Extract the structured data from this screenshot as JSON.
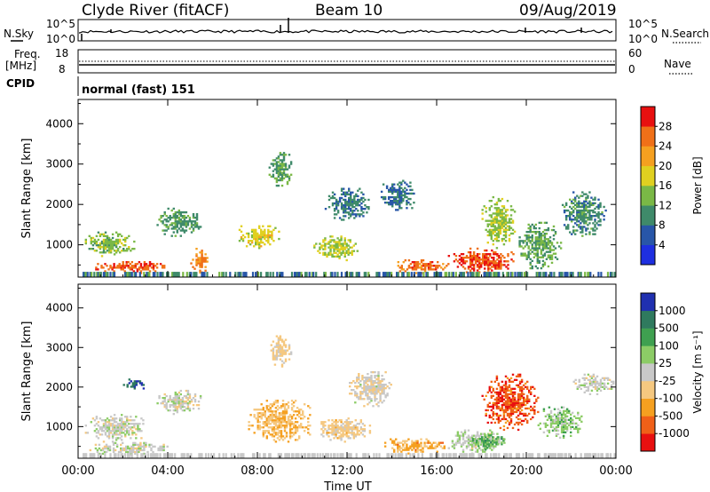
{
  "header": {
    "station": "Clyde River (fitACF)",
    "beam": "Beam 10",
    "date": "09/Aug/2019"
  },
  "strip": {
    "nsky_label": "N.Sky",
    "nsearch_label": "N.Search",
    "freq_label": "Freq.",
    "freq_unit": "[MHz]",
    "nave_label": "Nave",
    "cpid_label": "CPID",
    "cpid_value": "normal (fast) 151",
    "noise_ticks": [
      "10^5",
      "10^0"
    ],
    "freq_ticks": [
      "18",
      "8"
    ],
    "nave_ticks": [
      "60",
      "0"
    ]
  },
  "chart_data": [
    {
      "type": "heatmap",
      "title": "Power",
      "ylabel": "Slant Range [km]",
      "colorbar_label": "Power [dB]",
      "colorbar_ticks": [
        28,
        24,
        20,
        16,
        12,
        8,
        4
      ],
      "clim": [
        0,
        32
      ],
      "colors": [
        "#1e2fe0",
        "#2856a8",
        "#3f8a6a",
        "#7ab846",
        "#e0d020",
        "#f5a020",
        "#f07018",
        "#e81010"
      ],
      "ylim": [
        200,
        4600
      ],
      "yticks": [
        1000,
        2000,
        3000,
        4000
      ],
      "xlim": [
        0,
        24
      ],
      "xticks": [
        "00:00",
        "04:00",
        "08:00",
        "12:00",
        "16:00",
        "20:00",
        "00:00"
      ],
      "blobs": [
        {
          "t": [
            0.6,
            4.0
          ],
          "r": [
            280,
            560
          ],
          "v": 27
        },
        {
          "t": [
            0.3,
            2.5
          ],
          "r": [
            700,
            1300
          ],
          "v": 14
        },
        {
          "t": [
            3.5,
            5.5
          ],
          "r": [
            1200,
            1900
          ],
          "v": 11
        },
        {
          "t": [
            5.0,
            5.8
          ],
          "r": [
            250,
            900
          ],
          "v": 25
        },
        {
          "t": [
            7.0,
            9.0
          ],
          "r": [
            900,
            1500
          ],
          "v": 18
        },
        {
          "t": [
            8.5,
            9.5
          ],
          "r": [
            2400,
            3300
          ],
          "v": 12
        },
        {
          "t": [
            10.5,
            12.5
          ],
          "r": [
            600,
            1200
          ],
          "v": 16
        },
        {
          "t": [
            11.0,
            13.0
          ],
          "r": [
            1600,
            2400
          ],
          "v": 9
        },
        {
          "t": [
            14.0,
            16.5
          ],
          "r": [
            280,
            600
          ],
          "v": 26
        },
        {
          "t": [
            16.5,
            19.5
          ],
          "r": [
            300,
            900
          ],
          "v": 28
        },
        {
          "t": [
            18.0,
            19.5
          ],
          "r": [
            900,
            2200
          ],
          "v": 15
        },
        {
          "t": [
            19.5,
            21.5
          ],
          "r": [
            400,
            1600
          ],
          "v": 12
        },
        {
          "t": [
            21.5,
            23.5
          ],
          "r": [
            1200,
            2300
          ],
          "v": 10
        },
        {
          "t": [
            13.5,
            15.0
          ],
          "r": [
            1800,
            2600
          ],
          "v": 8
        }
      ]
    },
    {
      "type": "heatmap",
      "title": "Velocity",
      "ylabel": "Slant Range [km]",
      "colorbar_label": "Velocity [m s⁻¹]",
      "colorbar_ticks": [
        "1000",
        "500",
        "100",
        "25",
        "-25",
        "-100",
        "-500",
        "-1000"
      ],
      "clim": [
        -1000,
        1000
      ],
      "colors": [
        "#e81010",
        "#f06018",
        "#f5a020",
        "#f5c880",
        "#c8c8c8",
        "#8ccc66",
        "#3fa050",
        "#2f7a5e",
        "#2030b0"
      ],
      "ylim": [
        200,
        4600
      ],
      "yticks": [
        1000,
        2000,
        3000,
        4000
      ],
      "xlim": [
        0,
        24
      ],
      "xticks": [
        "00:00",
        "04:00",
        "08:00",
        "12:00",
        "16:00",
        "20:00",
        "00:00"
      ],
      "blobs": [
        {
          "t": [
            0.3,
            3.0
          ],
          "r": [
            600,
            1300
          ],
          "v": 0
        },
        {
          "t": [
            0.5,
            4.0
          ],
          "r": [
            250,
            600
          ],
          "v": 20
        },
        {
          "t": [
            3.5,
            5.5
          ],
          "r": [
            1300,
            1900
          ],
          "v": 0
        },
        {
          "t": [
            7.5,
            10.5
          ],
          "r": [
            600,
            1700
          ],
          "v": -300
        },
        {
          "t": [
            8.5,
            9.5
          ],
          "r": [
            2500,
            3300
          ],
          "v": -150
        },
        {
          "t": [
            10.5,
            13.0
          ],
          "r": [
            600,
            1200
          ],
          "v": -200
        },
        {
          "t": [
            12.0,
            14.0
          ],
          "r": [
            1500,
            2400
          ],
          "v": -60
        },
        {
          "t": [
            13.5,
            16.5
          ],
          "r": [
            300,
            700
          ],
          "v": -400
        },
        {
          "t": [
            16.5,
            19.0
          ],
          "r": [
            300,
            900
          ],
          "v": 60
        },
        {
          "t": [
            17.5,
            19.0
          ],
          "r": [
            400,
            800
          ],
          "v": 400
        },
        {
          "t": [
            18.0,
            20.5
          ],
          "r": [
            900,
            2300
          ],
          "v": -700
        },
        {
          "t": [
            20.5,
            22.5
          ],
          "r": [
            700,
            1500
          ],
          "v": 200
        },
        {
          "t": [
            22.0,
            24.0
          ],
          "r": [
            1800,
            2300
          ],
          "v": 0
        },
        {
          "t": [
            2.0,
            3.0
          ],
          "r": [
            1900,
            2200
          ],
          "v": 800
        }
      ]
    }
  ],
  "xlabel": "Time UT"
}
